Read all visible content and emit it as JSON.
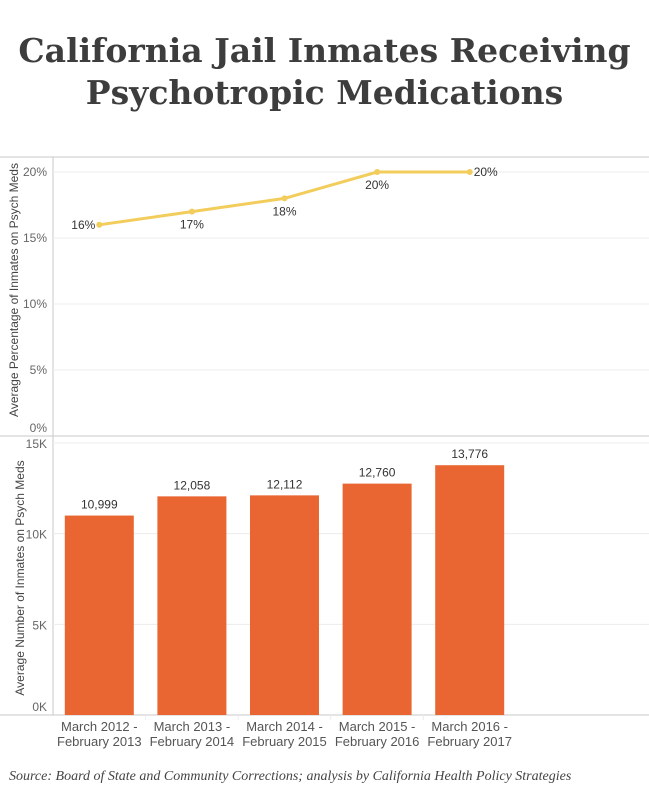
{
  "title_line1": "California Jail Inmates Receiving",
  "title_line2": "Psychotropic Medications",
  "source": "Source: Board of State and Community Corrections; analysis by California Health Policy Strategies",
  "colors": {
    "line": "#f2cd5c",
    "bar": "#e96632",
    "grid": "#ececec",
    "axis": "#c8c8c8"
  },
  "chart_data": [
    {
      "type": "line",
      "ylabel": "Average Percentage of Inmates on Psych Meds",
      "ylim": [
        0,
        20
      ],
      "yticks": [
        "0%",
        "5%",
        "10%",
        "15%",
        "20%"
      ],
      "ytick_values": [
        0,
        5,
        10,
        15,
        20
      ],
      "categories": [
        "March 2012 - February 2013",
        "March 2013 - February 2014",
        "March 2014 - February 2015",
        "March 2015 - February 2016",
        "March 2016 - February 2017"
      ],
      "values": [
        16,
        17,
        18,
        20,
        20
      ],
      "labels": [
        "16%",
        "17%",
        "18%",
        "20%",
        "20%"
      ]
    },
    {
      "type": "bar",
      "ylabel": "Average Number of Inmates on Psych Meds",
      "ylim": [
        0,
        15000
      ],
      "yticks": [
        "0K",
        "5K",
        "10K",
        "15K"
      ],
      "ytick_values": [
        0,
        5000,
        10000,
        15000
      ],
      "categories": [
        [
          "March 2012 -",
          "February 2013"
        ],
        [
          "March 2013 -",
          "February 2014"
        ],
        [
          "March 2014 -",
          "February 2015"
        ],
        [
          "March 2015 -",
          "February 2016"
        ],
        [
          "March 2016 -",
          "February 2017"
        ]
      ],
      "values": [
        10999,
        12058,
        12112,
        12760,
        13776
      ],
      "labels": [
        "10,999",
        "12,058",
        "12,112",
        "12,760",
        "13,776"
      ]
    }
  ]
}
